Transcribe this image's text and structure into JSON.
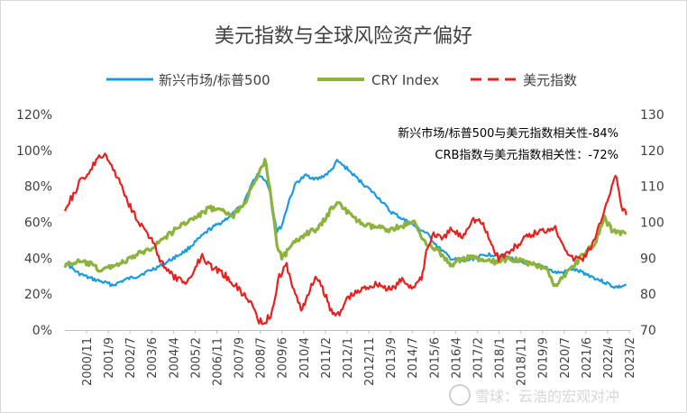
{
  "chart_data": {
    "type": "line",
    "title": "美元指数与全球风险资产偏好",
    "legend_position": "top",
    "annotations": [
      "新兴市场/标普500与美元指数相关性-84%",
      "CRB指数与美元指数相关性：-72%"
    ],
    "watermark": "雪球：云浩的宏观对冲",
    "x_tick_labels": [
      "2000/11",
      "2001/9",
      "2002/7",
      "2003/6",
      "2004/4",
      "2005/2",
      "2006/11",
      "2007/9",
      "2008/7",
      "2009/6",
      "2010/4",
      "2011/2",
      "2012/1",
      "2012/11",
      "2013/9",
      "2014/7",
      "2015/6",
      "2016/4",
      "2017/2",
      "2018/1",
      "2018/11",
      "2019/9",
      "2020/7",
      "2021/6",
      "2022/4",
      "2023/2"
    ],
    "x_range": [
      2000.0,
      2023.5
    ],
    "left_axis": {
      "ticks": [
        "0%",
        "20%",
        "40%",
        "60%",
        "80%",
        "100%",
        "120%"
      ],
      "range": [
        0,
        1.2
      ]
    },
    "right_axis": {
      "ticks": [
        "70",
        "80",
        "90",
        "100",
        "110",
        "120",
        "130"
      ],
      "range": [
        70,
        130
      ]
    },
    "grid": false,
    "series": [
      {
        "name": "新兴市场/标普500",
        "axis": "left",
        "color": "#1A9BE0",
        "style": "solid",
        "x": [
          2000.0,
          2000.5,
          2001.0,
          2001.5,
          2002.0,
          2002.5,
          2003.0,
          2003.5,
          2004.0,
          2004.5,
          2005.0,
          2005.5,
          2006.0,
          2006.5,
          2007.0,
          2007.4,
          2007.7,
          2008.0,
          2008.3,
          2008.5,
          2008.8,
          2009.0,
          2009.3,
          2009.6,
          2010.0,
          2010.5,
          2011.0,
          2011.3,
          2011.7,
          2012.0,
          2012.5,
          2013.0,
          2013.5,
          2014.0,
          2014.5,
          2015.0,
          2015.5,
          2016.0,
          2016.5,
          2017.0,
          2017.5,
          2018.0,
          2018.5,
          2019.0,
          2019.5,
          2020.0,
          2020.3,
          2020.7,
          2021.0,
          2021.5,
          2022.0,
          2022.5,
          2022.8,
          2023.0,
          2023.3
        ],
        "y": [
          0.38,
          0.32,
          0.29,
          0.27,
          0.25,
          0.28,
          0.3,
          0.33,
          0.36,
          0.4,
          0.44,
          0.5,
          0.56,
          0.6,
          0.65,
          0.7,
          0.8,
          0.87,
          0.84,
          0.78,
          0.55,
          0.58,
          0.72,
          0.82,
          0.86,
          0.84,
          0.88,
          0.94,
          0.9,
          0.86,
          0.8,
          0.74,
          0.66,
          0.62,
          0.58,
          0.54,
          0.46,
          0.4,
          0.38,
          0.4,
          0.42,
          0.42,
          0.4,
          0.37,
          0.36,
          0.35,
          0.32,
          0.32,
          0.34,
          0.32,
          0.29,
          0.26,
          0.24,
          0.24,
          0.25
        ]
      },
      {
        "name": "CRY Index",
        "axis": "left",
        "color": "#8DB33E",
        "style": "solid",
        "x": [
          2000.0,
          2000.5,
          2001.0,
          2001.5,
          2002.0,
          2002.5,
          2003.0,
          2003.5,
          2004.0,
          2004.5,
          2005.0,
          2005.5,
          2006.0,
          2006.5,
          2007.0,
          2007.5,
          2008.0,
          2008.3,
          2008.5,
          2008.8,
          2009.0,
          2009.5,
          2010.0,
          2010.5,
          2011.0,
          2011.3,
          2011.7,
          2012.0,
          2012.5,
          2013.0,
          2013.5,
          2014.0,
          2014.5,
          2015.0,
          2015.5,
          2016.0,
          2016.5,
          2017.0,
          2017.5,
          2018.0,
          2018.5,
          2019.0,
          2019.5,
          2020.0,
          2020.3,
          2020.7,
          2021.0,
          2021.5,
          2022.0,
          2022.4,
          2022.7,
          2023.0,
          2023.3
        ],
        "y": [
          0.36,
          0.38,
          0.37,
          0.33,
          0.36,
          0.38,
          0.42,
          0.45,
          0.5,
          0.55,
          0.6,
          0.63,
          0.68,
          0.66,
          0.64,
          0.72,
          0.85,
          0.95,
          0.8,
          0.48,
          0.4,
          0.48,
          0.54,
          0.56,
          0.66,
          0.72,
          0.66,
          0.62,
          0.58,
          0.57,
          0.56,
          0.58,
          0.6,
          0.48,
          0.44,
          0.36,
          0.4,
          0.4,
          0.38,
          0.38,
          0.4,
          0.38,
          0.36,
          0.35,
          0.24,
          0.3,
          0.34,
          0.42,
          0.48,
          0.62,
          0.56,
          0.54,
          0.54
        ]
      },
      {
        "name": "美元指数",
        "axis": "right",
        "color": "#E8201E",
        "style": "dashed",
        "x": [
          2000.0,
          2000.3,
          2000.7,
          2001.0,
          2001.3,
          2001.6,
          2002.0,
          2002.3,
          2002.6,
          2003.0,
          2003.3,
          2003.6,
          2004.0,
          2004.3,
          2004.7,
          2005.0,
          2005.3,
          2005.7,
          2006.0,
          2006.5,
          2007.0,
          2007.4,
          2007.8,
          2008.0,
          2008.3,
          2008.6,
          2008.9,
          2009.2,
          2009.5,
          2009.8,
          2010.0,
          2010.4,
          2010.8,
          2011.0,
          2011.4,
          2011.7,
          2012.0,
          2012.5,
          2013.0,
          2013.5,
          2014.0,
          2014.4,
          2014.8,
          2015.0,
          2015.3,
          2015.7,
          2016.0,
          2016.5,
          2016.9,
          2017.3,
          2017.7,
          2018.0,
          2018.5,
          2019.0,
          2019.5,
          2020.0,
          2020.3,
          2020.7,
          2021.0,
          2021.5,
          2022.0,
          2022.4,
          2022.7,
          2022.9,
          2023.1,
          2023.3
        ],
        "y": [
          104,
          107,
          112,
          114,
          117,
          119,
          115,
          111,
          106,
          101,
          98,
          95,
          89,
          86,
          84,
          83,
          86,
          91,
          88,
          86,
          83,
          80,
          77,
          73,
          72,
          75,
          85,
          88,
          81,
          76,
          78,
          85,
          80,
          76,
          74,
          79,
          80,
          82,
          83,
          81,
          84,
          82,
          84,
          92,
          97,
          95,
          98,
          96,
          101,
          100,
          94,
          90,
          92,
          95,
          97,
          98,
          99,
          94,
          90,
          90,
          95,
          104,
          110,
          113,
          104,
          102
        ]
      }
    ]
  }
}
